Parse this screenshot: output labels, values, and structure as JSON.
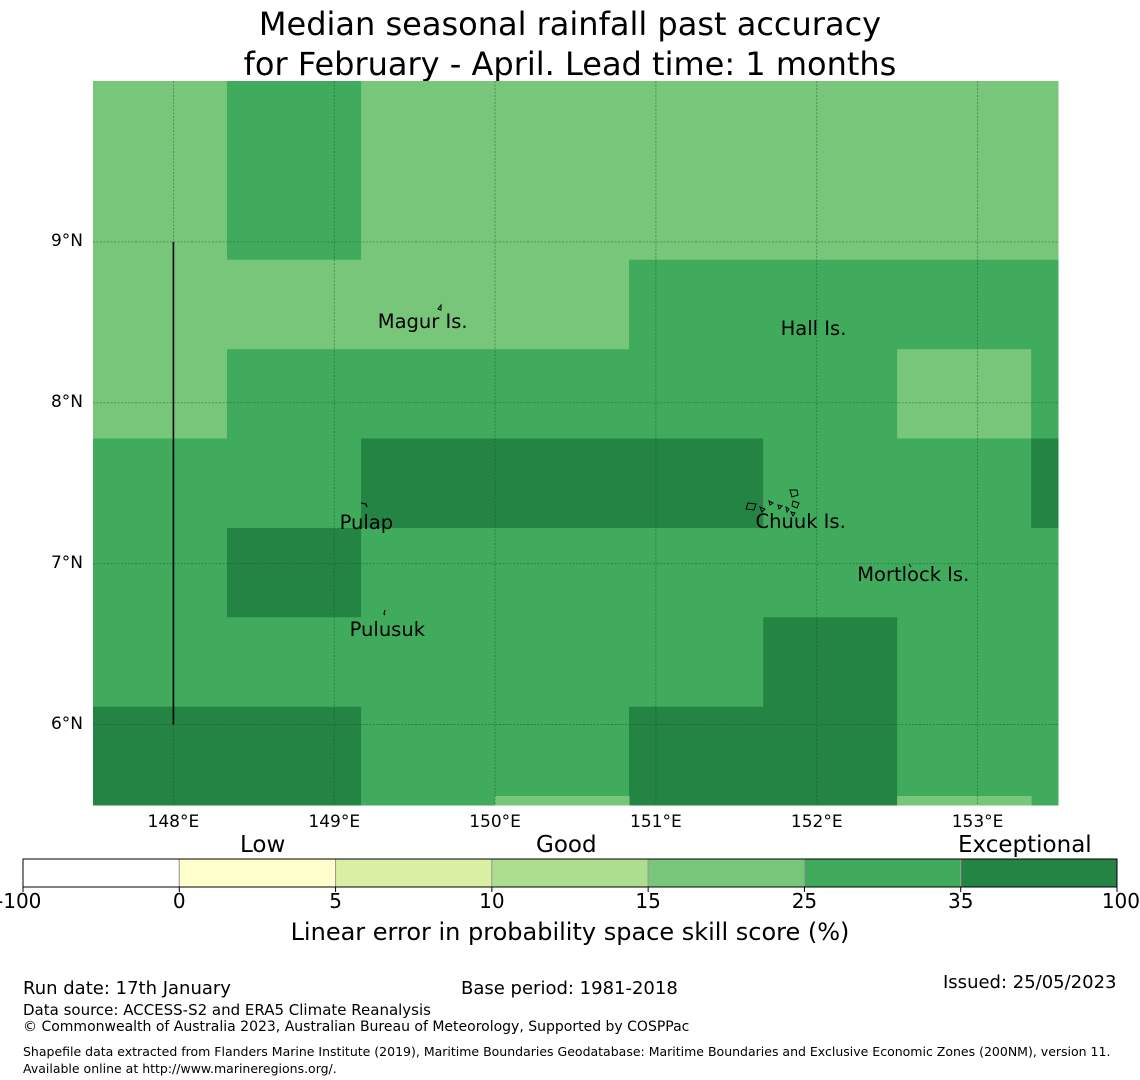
{
  "title": {
    "line1": "Median seasonal rainfall past accuracy",
    "line2": "for February - April. Lead time: 1 months"
  },
  "map": {
    "lon_range": [
      147.5,
      153.5
    ],
    "lat_range": [
      5.5,
      10.0
    ],
    "y_ticks": [
      {
        "lat": 9,
        "label": "9°N"
      },
      {
        "lat": 8,
        "label": "8°N"
      },
      {
        "lat": 7,
        "label": "7°N"
      },
      {
        "lat": 6,
        "label": "6°N"
      }
    ],
    "x_ticks": [
      {
        "lon": 148,
        "label": "148°E"
      },
      {
        "lon": 149,
        "label": "149°E"
      },
      {
        "lon": 150,
        "label": "150°E"
      },
      {
        "lon": 151,
        "label": "151°E"
      },
      {
        "lon": 152,
        "label": "152°E"
      },
      {
        "lon": 153,
        "label": "153°E"
      }
    ],
    "colors": {
      "light": "#78c67a",
      "medium": "#41ab5d",
      "dark": "#238443",
      "pale": "#addd8e"
    },
    "skill_cells": [
      {
        "lon0": 147.5,
        "lon1": 148.333,
        "lat0": 7.778,
        "lat1": 10.0,
        "class": "light"
      },
      {
        "lon0": 148.333,
        "lon1": 149.167,
        "lat0": 8.889,
        "lat1": 10.0,
        "class": "medium"
      },
      {
        "lon0": 149.167,
        "lon1": 153.5,
        "lat0": 8.889,
        "lat1": 10.0,
        "class": "light"
      },
      {
        "lon0": 148.333,
        "lon1": 150.833,
        "lat0": 8.333,
        "lat1": 8.889,
        "class": "light"
      },
      {
        "lon0": 150.833,
        "lon1": 153.5,
        "lat0": 8.333,
        "lat1": 8.889,
        "class": "medium"
      },
      {
        "lon0": 148.333,
        "lon1": 152.5,
        "lat0": 7.778,
        "lat1": 8.333,
        "class": "medium"
      },
      {
        "lon0": 152.5,
        "lon1": 153.333,
        "lat0": 7.778,
        "lat1": 8.333,
        "class": "light"
      },
      {
        "lon0": 153.333,
        "lon1": 153.5,
        "lat0": 7.778,
        "lat1": 8.333,
        "class": "medium"
      },
      {
        "lon0": 147.5,
        "lon1": 149.167,
        "lat0": 7.222,
        "lat1": 7.778,
        "class": "medium"
      },
      {
        "lon0": 149.167,
        "lon1": 151.667,
        "lat0": 7.222,
        "lat1": 7.778,
        "class": "dark"
      },
      {
        "lon0": 151.667,
        "lon1": 153.333,
        "lat0": 7.222,
        "lat1": 7.778,
        "class": "medium"
      },
      {
        "lon0": 153.333,
        "lon1": 153.5,
        "lat0": 7.222,
        "lat1": 7.778,
        "class": "dark"
      },
      {
        "lon0": 147.5,
        "lon1": 148.333,
        "lat0": 6.111,
        "lat1": 7.222,
        "class": "medium"
      },
      {
        "lon0": 148.333,
        "lon1": 149.167,
        "lat0": 6.667,
        "lat1": 7.222,
        "class": "dark"
      },
      {
        "lon0": 149.167,
        "lon1": 153.5,
        "lat0": 6.667,
        "lat1": 7.222,
        "class": "medium"
      },
      {
        "lon0": 148.333,
        "lon1": 151.667,
        "lat0": 6.111,
        "lat1": 6.667,
        "class": "medium"
      },
      {
        "lon0": 151.667,
        "lon1": 152.5,
        "lat0": 6.111,
        "lat1": 6.667,
        "class": "dark"
      },
      {
        "lon0": 152.5,
        "lon1": 153.5,
        "lat0": 6.111,
        "lat1": 6.667,
        "class": "medium"
      },
      {
        "lon0": 147.5,
        "lon1": 149.167,
        "lat0": 5.5,
        "lat1": 6.111,
        "class": "dark"
      },
      {
        "lon0": 149.167,
        "lon1": 150.833,
        "lat0": 5.5,
        "lat1": 6.111,
        "class": "medium"
      },
      {
        "lon0": 150.833,
        "lon1": 152.5,
        "lat0": 5.5,
        "lat1": 6.111,
        "class": "dark"
      },
      {
        "lon0": 152.5,
        "lon1": 153.5,
        "lat0": 5.5,
        "lat1": 6.111,
        "class": "medium"
      },
      {
        "lon0": 150.0,
        "lon1": 150.833,
        "lat0": 5.5,
        "lat1": 5.556,
        "class": "light"
      },
      {
        "lon0": 152.5,
        "lon1": 153.333,
        "lat0": 5.5,
        "lat1": 5.556,
        "class": "light"
      }
    ],
    "boundary_line": {
      "lon": 148.0,
      "lat_from": 6.0,
      "lat_to": 9.0
    },
    "places": [
      {
        "name": "Magur Is.",
        "lon": 149.55,
        "lat": 8.5
      },
      {
        "name": "Hall Is.",
        "lon": 151.98,
        "lat": 8.46
      },
      {
        "name": "Pulap",
        "lon": 149.2,
        "lat": 7.25
      },
      {
        "name": "Chuuk Is.",
        "lon": 151.9,
        "lat": 7.26
      },
      {
        "name": "Mortlock Is.",
        "lon": 152.6,
        "lat": 6.93
      },
      {
        "name": "Pulusuk",
        "lon": 149.33,
        "lat": 6.59
      }
    ]
  },
  "colorbar": {
    "categories": [
      "Low",
      "Good",
      "Exceptional"
    ],
    "bins": [
      "#ffffff",
      "#ffffcc",
      "#d9f0a3",
      "#addd8e",
      "#78c67a",
      "#41ab5d",
      "#238443"
    ],
    "ticks": [
      "-100",
      "0",
      "5",
      "10",
      "15",
      "25",
      "35",
      "100"
    ],
    "label": "Linear error in probability space skill score (%)"
  },
  "footer": {
    "run_date": "Run date: 17th January",
    "base_period": "Base period: 1981-2018",
    "issued": "Issued: 25/05/2023",
    "data_source": "Data source: ACCESS-S2 and ERA5 Climate Reanalysis",
    "copyright": "© Commonwealth of Australia 2023, Australian Bureau of Meteorology, Supported by COSPPac",
    "shapefile": "Shapefile data extracted from Flanders Marine Institute (2019), Maritime Boundaries Geodatabase: Maritime Boundaries and Exclusive Economic Zones (200NM), version 11. Available online at http://www.marineregions.org/."
  }
}
